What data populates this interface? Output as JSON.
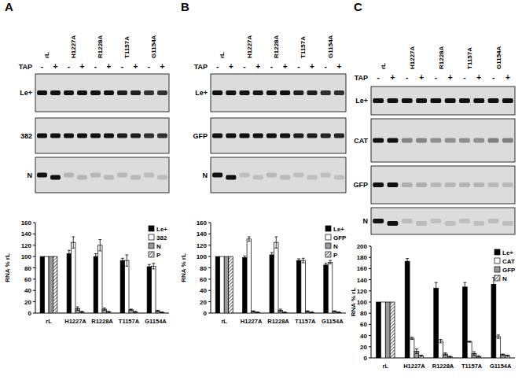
{
  "chart_data": [
    {
      "type": "bar",
      "title": "A",
      "y_label": "RNA % rL",
      "annotations": [
        "TAP",
        "-",
        "+"
      ],
      "gel_rows": [
        "Le+",
        "382",
        "N"
      ],
      "categories": [
        "rL",
        "H1227A",
        "R1228A",
        "T1157A",
        "G1154A"
      ],
      "series": [
        {
          "name": "Le+",
          "color": "#000000",
          "values": [
            100,
            105,
            100,
            93,
            82
          ],
          "errors": [
            0,
            6,
            5,
            4,
            4
          ]
        },
        {
          "name": "382",
          "color": "#ffffff",
          "values": [
            100,
            125,
            120,
            93,
            83
          ],
          "errors": [
            0,
            10,
            10,
            10,
            5
          ]
        },
        {
          "name": "N",
          "color": "#999999",
          "values": [
            100,
            8,
            7,
            6,
            4
          ],
          "errors": [
            0,
            3,
            2,
            1,
            1
          ]
        },
        {
          "name": "P",
          "color": "#ffffff",
          "marker": "hatch",
          "values": [
            100,
            2,
            2,
            2,
            1
          ],
          "errors": [
            0,
            1,
            1,
            1,
            1
          ]
        }
      ],
      "ylim": [
        0,
        160
      ],
      "yticks": [
        0,
        20,
        40,
        60,
        80,
        100,
        120,
        140,
        160
      ],
      "legend": "upper right"
    },
    {
      "type": "bar",
      "title": "B",
      "y_label": "RNA % rL",
      "annotations": [
        "TAP",
        "-",
        "+"
      ],
      "gel_rows": [
        "Le+",
        "GFP",
        "N"
      ],
      "categories": [
        "rL",
        "H1227A",
        "R1228A",
        "T1157A",
        "G1154A"
      ],
      "series": [
        {
          "name": "Le+",
          "color": "#000000",
          "values": [
            100,
            98,
            103,
            93,
            85
          ],
          "errors": [
            0,
            3,
            4,
            3,
            3
          ]
        },
        {
          "name": "GFP",
          "color": "#ffffff",
          "values": [
            100,
            131,
            125,
            93,
            90
          ],
          "errors": [
            0,
            4,
            10,
            4,
            3
          ]
        },
        {
          "name": "N",
          "color": "#999999",
          "values": [
            100,
            3,
            5,
            3,
            3
          ],
          "errors": [
            0,
            1,
            2,
            1,
            1
          ]
        },
        {
          "name": "P",
          "color": "#ffffff",
          "marker": "hatch",
          "values": [
            100,
            1,
            1,
            1,
            1
          ],
          "errors": [
            0,
            1,
            1,
            1,
            1
          ]
        }
      ],
      "ylim": [
        0,
        160
      ],
      "yticks": [
        0,
        20,
        40,
        60,
        80,
        100,
        120,
        140,
        160
      ],
      "legend": "upper right"
    },
    {
      "type": "bar",
      "title": "C",
      "y_label": "RNA % rL",
      "annotations": [
        "TAP",
        "-",
        "+"
      ],
      "gel_rows": [
        "Le+",
        "CAT",
        "GFP",
        "N"
      ],
      "categories": [
        "rL",
        "H1227A",
        "R1228A",
        "T1157A",
        "G1154A"
      ],
      "series": [
        {
          "name": "Le+",
          "color": "#000000",
          "values": [
            100,
            173,
            125,
            127,
            132
          ],
          "errors": [
            0,
            5,
            10,
            8,
            12
          ]
        },
        {
          "name": "CAT",
          "color": "#ffffff",
          "values": [
            100,
            35,
            30,
            29,
            38
          ],
          "errors": [
            0,
            2,
            3,
            1,
            3
          ]
        },
        {
          "name": "GFP",
          "color": "#999999",
          "values": [
            100,
            12,
            7,
            8,
            6
          ],
          "errors": [
            0,
            4,
            2,
            3,
            1
          ]
        },
        {
          "name": "N",
          "color": "#ffffff",
          "marker": "hatch",
          "values": [
            100,
            4,
            2,
            2,
            4
          ],
          "errors": [
            0,
            1,
            1,
            2,
            1
          ]
        }
      ],
      "ylim": [
        0,
        200
      ],
      "yticks": [
        0,
        20,
        40,
        60,
        80,
        100,
        120,
        140,
        160,
        180,
        200
      ],
      "legend": "upper right"
    }
  ]
}
